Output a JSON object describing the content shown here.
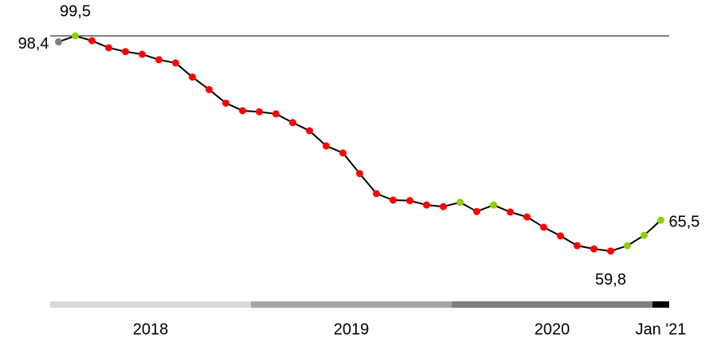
{
  "chart_data": {
    "type": "line",
    "categories": [
      null,
      null,
      null,
      null,
      null,
      null,
      null,
      null,
      null,
      null,
      null,
      null,
      null,
      null,
      null,
      null,
      null,
      null,
      null,
      null,
      null,
      null,
      null,
      null,
      null,
      null,
      null,
      null,
      null,
      null,
      null,
      null,
      null,
      null,
      null,
      null,
      null
    ],
    "series": [
      {
        "color": "#000000",
        "values": [
          98.4,
          99.5,
          98.6,
          97.3,
          96.6,
          96.1,
          95.1,
          94.5,
          91.9,
          89.6,
          87.1,
          85.7,
          85.5,
          85.1,
          83.5,
          82.0,
          79.2,
          77.9,
          74.1,
          70.4,
          69.2,
          69.1,
          68.3,
          68.0,
          68.8,
          67.1,
          68.3,
          67.0,
          66.1,
          64.2,
          62.6,
          60.8,
          60.2,
          59.8,
          60.8,
          62.7,
          65.5
        ],
        "value_labels": [
          "98,4",
          "99,5",
          null,
          null,
          null,
          null,
          null,
          null,
          null,
          null,
          null,
          null,
          null,
          null,
          null,
          null,
          null,
          null,
          null,
          null,
          null,
          null,
          null,
          null,
          null,
          null,
          null,
          null,
          null,
          null,
          null,
          null,
          null,
          "59,8",
          null,
          null,
          "65,5"
        ],
        "point_colors": [
          "#7f7f7f",
          "#8fce00",
          "#ff0000",
          "#ff0000",
          "#ff0000",
          "#ff0000",
          "#ff0000",
          "#ff0000",
          "#ff0000",
          "#ff0000",
          "#ff0000",
          "#ff0000",
          "#ff0000",
          "#ff0000",
          "#ff0000",
          "#ff0000",
          "#ff0000",
          "#ff0000",
          "#ff0000",
          "#ff0000",
          "#ff0000",
          "#ff0000",
          "#ff0000",
          "#ff0000",
          "#8fce00",
          "#ff0000",
          "#8fce00",
          "#ff0000",
          "#ff0000",
          "#ff0000",
          "#ff0000",
          "#ff0000",
          "#ff0000",
          "#ff0000",
          "#8fce00",
          "#8fce00",
          "#8fce00"
        ]
      }
    ],
    "reference_line": {
      "value": 99.5,
      "color": "#808080"
    },
    "groups": [
      {
        "label": "2018",
        "months": 12,
        "color": "#d9d9d9"
      },
      {
        "label": "2019",
        "months": 12,
        "color": "#a6a6a6"
      },
      {
        "label": "2020",
        "months": 12,
        "color": "#808080"
      },
      {
        "label": "Jan '21",
        "months": 1,
        "color": "#000000"
      }
    ],
    "ylim": [
      55,
      101
    ]
  }
}
